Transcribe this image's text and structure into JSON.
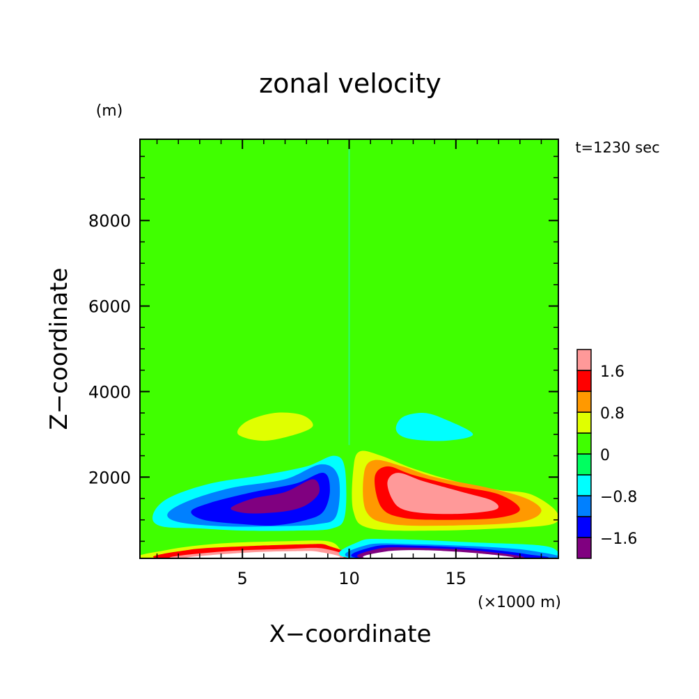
{
  "chart_data": {
    "type": "heatmap",
    "title": "zonal velocity",
    "xlabel": "X−coordinate",
    "ylabel": "Z−coordinate",
    "x_unit": "(×1000 m)",
    "y_unit": "(m)",
    "time_label": "t=1230 sec",
    "xlim": [
      0.2,
      19.8
    ],
    "ylim": [
      100,
      9900
    ],
    "x_ticks": [
      5,
      10,
      15
    ],
    "y_ticks": [
      2000,
      4000,
      6000,
      8000
    ],
    "x_tick_labels": [
      "5",
      "10",
      "15"
    ],
    "y_tick_labels": [
      "2000",
      "4000",
      "6000",
      "8000"
    ],
    "colorbar": {
      "levels": [
        -2.0,
        -1.6,
        -1.2,
        -0.8,
        -0.4,
        0,
        0.4,
        0.8,
        1.2,
        1.6,
        2.0
      ],
      "colors": [
        "#800080",
        "#0000ff",
        "#0080ff",
        "#00ffff",
        "#00ff60",
        "#40ff00",
        "#e0ff00",
        "#ff9900",
        "#ff0000",
        "#ff9999"
      ],
      "tick_labels": [
        "−1.6",
        "−0.8",
        "0",
        "0.8",
        "1.6"
      ],
      "tick_values": [
        -1.6,
        -0.8,
        0,
        0.8,
        1.6
      ]
    },
    "regions": [
      {
        "name": "background",
        "value": 0.0,
        "points": [
          [
            0.2,
            100
          ],
          [
            19.8,
            100
          ],
          [
            19.8,
            9900
          ],
          [
            0.2,
            9900
          ]
        ]
      },
      {
        "name": "upper-band",
        "value": 0.3,
        "points": [
          [
            0.2,
            9900
          ],
          [
            10,
            9900
          ],
          [
            10,
            8000
          ],
          [
            0.2,
            7950
          ]
        ]
      },
      {
        "name": "upper-band-right",
        "value": 0.3,
        "points": [
          [
            10,
            9900
          ],
          [
            19.8,
            9900
          ],
          [
            19.8,
            8000
          ],
          [
            10,
            8050
          ]
        ]
      },
      {
        "name": "mid-band-left",
        "value": 0.3,
        "points": [
          [
            0.2,
            4850
          ],
          [
            10,
            4850
          ],
          [
            10,
            2700
          ],
          [
            5,
            2150
          ],
          [
            0.2,
            2100
          ]
        ]
      },
      {
        "name": "mid-band-right",
        "value": 0.3,
        "points": [
          [
            10,
            4850
          ],
          [
            19.8,
            4850
          ],
          [
            19.8,
            2100
          ],
          [
            15,
            2150
          ],
          [
            10,
            2750
          ]
        ]
      },
      {
        "name": "left-yellow-cell",
        "value": 0.5,
        "points": [
          [
            4.8,
            3000
          ],
          [
            5.2,
            3300
          ],
          [
            6.5,
            3500
          ],
          [
            7.8,
            3450
          ],
          [
            8.3,
            3200
          ],
          [
            7.5,
            3000
          ],
          [
            6,
            2850
          ]
        ]
      },
      {
        "name": "right-cyan-cell",
        "value": -0.5,
        "points": [
          [
            12.2,
            3100
          ],
          [
            12.5,
            3400
          ],
          [
            13.5,
            3500
          ],
          [
            14.5,
            3350
          ],
          [
            15.8,
            3000
          ],
          [
            14.5,
            2850
          ],
          [
            12.8,
            2900
          ]
        ]
      },
      {
        "name": "left-cyan",
        "value": -0.6,
        "points": [
          [
            0.8,
            1100
          ],
          [
            1.5,
            1500
          ],
          [
            3.5,
            1850
          ],
          [
            6,
            2050
          ],
          [
            8,
            2250
          ],
          [
            9.3,
            2500
          ],
          [
            9.8,
            2200
          ],
          [
            9.8,
            1100
          ],
          [
            9.2,
            800
          ],
          [
            7.5,
            750
          ],
          [
            5,
            750
          ],
          [
            3,
            800
          ],
          [
            1.2,
            850
          ]
        ]
      },
      {
        "name": "left-lightblue",
        "value": -1.0,
        "points": [
          [
            1.5,
            1150
          ],
          [
            2.5,
            1450
          ],
          [
            4.5,
            1750
          ],
          [
            7,
            1950
          ],
          [
            8.7,
            2300
          ],
          [
            9.5,
            2000
          ],
          [
            9.4,
            1100
          ],
          [
            8.5,
            900
          ],
          [
            6.5,
            850
          ],
          [
            4,
            850
          ],
          [
            2,
            950
          ]
        ]
      },
      {
        "name": "left-blue",
        "value": -1.4,
        "points": [
          [
            2.6,
            1200
          ],
          [
            3.5,
            1400
          ],
          [
            5.5,
            1650
          ],
          [
            7.5,
            1850
          ],
          [
            8.8,
            2100
          ],
          [
            9.1,
            1700
          ],
          [
            8.8,
            1200
          ],
          [
            8,
            1000
          ],
          [
            6.5,
            870
          ],
          [
            5,
            900
          ],
          [
            3.2,
            1000
          ]
        ]
      },
      {
        "name": "left-purple",
        "value": -1.8,
        "points": [
          [
            4.5,
            1300
          ],
          [
            5.5,
            1500
          ],
          [
            7,
            1650
          ],
          [
            8.3,
            1950
          ],
          [
            8.6,
            1650
          ],
          [
            8,
            1350
          ],
          [
            7,
            1200
          ],
          [
            5.5,
            1150
          ],
          [
            4.7,
            1200
          ]
        ]
      },
      {
        "name": "right-yellow",
        "value": 0.6,
        "points": [
          [
            10.2,
            2200
          ],
          [
            10.5,
            2600
          ],
          [
            11.5,
            2500
          ],
          [
            13,
            2200
          ],
          [
            15,
            1900
          ],
          [
            17,
            1700
          ],
          [
            18.5,
            1600
          ],
          [
            19.7,
            1200
          ],
          [
            19.5,
            900
          ],
          [
            17,
            800
          ],
          [
            14,
            750
          ],
          [
            11,
            800
          ],
          [
            10.2,
            1200
          ]
        ]
      },
      {
        "name": "right-orange",
        "value": 1.0,
        "points": [
          [
            10.7,
            2100
          ],
          [
            11.2,
            2400
          ],
          [
            12.5,
            2250
          ],
          [
            14,
            2000
          ],
          [
            16.5,
            1750
          ],
          [
            18.3,
            1500
          ],
          [
            19,
            1200
          ],
          [
            18,
            950
          ],
          [
            15,
            870
          ],
          [
            12,
            900
          ],
          [
            10.8,
            1200
          ]
        ]
      },
      {
        "name": "right-red",
        "value": 1.4,
        "points": [
          [
            11.2,
            2000
          ],
          [
            11.8,
            2250
          ],
          [
            13,
            2050
          ],
          [
            15,
            1800
          ],
          [
            17,
            1600
          ],
          [
            18,
            1250
          ],
          [
            17,
            1050
          ],
          [
            14.5,
            1000
          ],
          [
            12.5,
            1050
          ],
          [
            11.5,
            1300
          ]
        ]
      },
      {
        "name": "right-pink",
        "value": 1.8,
        "points": [
          [
            11.8,
            1900
          ],
          [
            12.3,
            2100
          ],
          [
            13.5,
            1900
          ],
          [
            15.3,
            1650
          ],
          [
            16.7,
            1450
          ],
          [
            16.9,
            1250
          ],
          [
            15.5,
            1150
          ],
          [
            13.7,
            1150
          ],
          [
            12.5,
            1250
          ],
          [
            12,
            1500
          ]
        ]
      },
      {
        "name": "left-bottom-yellow",
        "value": 0.6,
        "points": [
          [
            0.6,
            100
          ],
          [
            1.5,
            300
          ],
          [
            4,
            450
          ],
          [
            7,
            500
          ],
          [
            9,
            500
          ],
          [
            9.6,
            300
          ],
          [
            9.8,
            100
          ]
        ]
      },
      {
        "name": "left-bottom-red",
        "value": 1.4,
        "points": [
          [
            1.2,
            100
          ],
          [
            2.5,
            300
          ],
          [
            5,
            380
          ],
          [
            8,
            430
          ],
          [
            9,
            400
          ],
          [
            9.6,
            100
          ]
        ]
      },
      {
        "name": "left-bottom-pink",
        "value": 1.8,
        "points": [
          [
            1.8,
            100
          ],
          [
            4,
            260
          ],
          [
            7,
            320
          ],
          [
            8.8,
            330
          ],
          [
            9.4,
            100
          ]
        ]
      },
      {
        "name": "left-bottom-white",
        "value": 2.4,
        "points": [
          [
            2.5,
            100
          ],
          [
            5,
            230
          ],
          [
            7.5,
            270
          ],
          [
            8.6,
            250
          ],
          [
            9.2,
            100
          ]
        ]
      },
      {
        "name": "right-bottom-cyan",
        "value": -0.6,
        "points": [
          [
            10.2,
            100
          ],
          [
            10.5,
            500
          ],
          [
            12,
            550
          ],
          [
            16,
            470
          ],
          [
            19,
            400
          ],
          [
            19.8,
            250
          ],
          [
            19.8,
            100
          ]
        ]
      },
      {
        "name": "right-bottom-lightblue",
        "value": -1.0,
        "points": [
          [
            10.4,
            100
          ],
          [
            10.9,
            420
          ],
          [
            13,
            430
          ],
          [
            16,
            380
          ],
          [
            18.5,
            280
          ],
          [
            19.3,
            100
          ]
        ]
      },
      {
        "name": "right-bottom-blue",
        "value": -1.4,
        "points": [
          [
            10.6,
            100
          ],
          [
            11.2,
            380
          ],
          [
            13,
            400
          ],
          [
            16,
            330
          ],
          [
            18.3,
            200
          ],
          [
            18.8,
            100
          ]
        ]
      },
      {
        "name": "right-bottom-purple",
        "value": -1.8,
        "points": [
          [
            10.8,
            100
          ],
          [
            11.4,
            330
          ],
          [
            13,
            350
          ],
          [
            16,
            280
          ],
          [
            18,
            100
          ]
        ]
      },
      {
        "name": "right-bottom-white",
        "value": -2.4,
        "points": [
          [
            11,
            100
          ],
          [
            11.7,
            260
          ],
          [
            13.5,
            290
          ],
          [
            16,
            220
          ],
          [
            17.5,
            100
          ]
        ]
      }
    ]
  }
}
